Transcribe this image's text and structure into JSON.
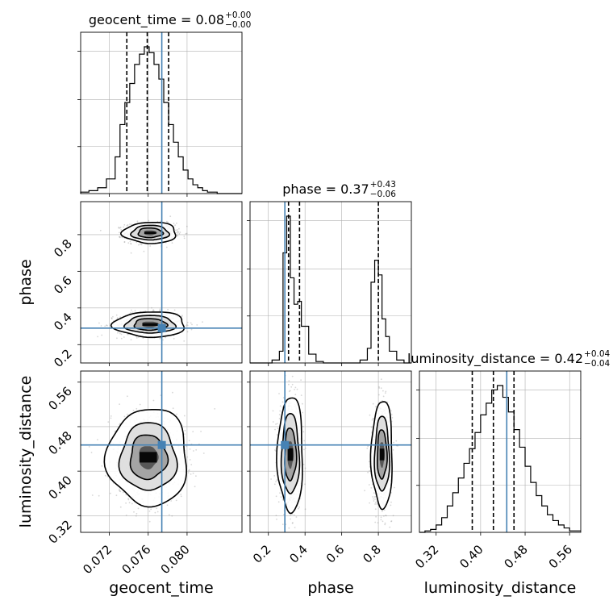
{
  "chart_data": {
    "type": "corner",
    "parameters": [
      {
        "name": "geocent_time",
        "axis_label": "geocent_time",
        "title": "geocent_time = 0.08",
        "title_sup": "+0.00",
        "title_sub": "−0.00",
        "range": [
          0.06905,
          0.08565
        ],
        "ticks": [
          0.072,
          0.076,
          0.08
        ],
        "tick_labels": [
          "0.072",
          "0.076",
          "0.080"
        ],
        "median": 0.0759,
        "quantile_lo": 0.0738,
        "quantile_hi": 0.0781,
        "truth": 0.0774
      },
      {
        "name": "phase",
        "axis_label": "phase",
        "title": "phase = 0.37",
        "title_sup": "+0.43",
        "title_sub": "−0.06",
        "range": [
          0.1,
          0.98
        ],
        "ticks": [
          0.2,
          0.4,
          0.6,
          0.8
        ],
        "tick_labels": [
          "0.2",
          "0.4",
          "0.6",
          "0.8"
        ],
        "median": 0.37,
        "quantile_lo": 0.31,
        "quantile_hi": 0.8,
        "truth": 0.29
      },
      {
        "name": "luminosity_distance",
        "axis_label": "luminosity_distance",
        "title": "luminosity_distance = 0.42",
        "title_sup": "+0.04",
        "title_sub": "−0.04",
        "range": [
          0.29,
          0.58
        ],
        "ticks": [
          0.32,
          0.4,
          0.48,
          0.56
        ],
        "tick_labels": [
          "0.32",
          "0.40",
          "0.48",
          "0.56"
        ],
        "median": 0.423,
        "quantile_lo": 0.385,
        "quantile_hi": 0.46,
        "truth": 0.447
      }
    ],
    "histograms": [
      {
        "param": "geocent_time",
        "bins": [
          0.06905,
          0.0699,
          0.0708,
          0.0717,
          0.0726,
          0.0731,
          0.0736,
          0.0741,
          0.0746,
          0.0751,
          0.0756,
          0.0761,
          0.0766,
          0.0771,
          0.0776,
          0.0781,
          0.0786,
          0.0791,
          0.0796,
          0.0801,
          0.0806,
          0.0811,
          0.0816,
          0.0821,
          0.0831,
          0.08565
        ],
        "counts": [
          1,
          2,
          4,
          10,
          25,
          47,
          62,
          75,
          88,
          95,
          100,
          96,
          88,
          78,
          62,
          47,
          35,
          25,
          16,
          10,
          6,
          4,
          2,
          1,
          0
        ]
      },
      {
        "param": "phase",
        "bins": [
          0.1,
          0.14,
          0.18,
          0.22,
          0.26,
          0.28,
          0.3,
          0.32,
          0.34,
          0.36,
          0.38,
          0.42,
          0.46,
          0.5,
          0.54,
          0.58,
          0.62,
          0.66,
          0.7,
          0.74,
          0.76,
          0.78,
          0.8,
          0.82,
          0.84,
          0.86,
          0.9,
          0.94,
          0.98
        ],
        "counts": [
          0,
          0,
          0,
          2,
          8,
          75,
          100,
          58,
          40,
          42,
          25,
          6,
          1,
          0,
          0,
          0,
          0,
          0,
          2,
          10,
          55,
          70,
          60,
          30,
          18,
          8,
          2,
          0
        ]
      },
      {
        "param": "luminosity_distance",
        "bins": [
          0.29,
          0.3,
          0.31,
          0.32,
          0.33,
          0.34,
          0.35,
          0.36,
          0.37,
          0.38,
          0.39,
          0.4,
          0.41,
          0.42,
          0.43,
          0.44,
          0.45,
          0.46,
          0.47,
          0.48,
          0.49,
          0.5,
          0.51,
          0.52,
          0.53,
          0.54,
          0.55,
          0.56,
          0.58
        ],
        "counts": [
          0,
          1,
          2,
          5,
          10,
          18,
          27,
          37,
          47,
          57,
          68,
          80,
          88,
          97,
          100,
          92,
          82,
          70,
          58,
          45,
          34,
          25,
          18,
          12,
          8,
          5,
          3,
          1
        ]
      }
    ],
    "pairs": [
      {
        "x": "geocent_time",
        "y": "phase",
        "modes": [
          {
            "cx": 0.0762,
            "cy": 0.81,
            "sx": 0.0012,
            "sy": 0.025
          },
          {
            "cx": 0.0762,
            "cy": 0.31,
            "sx": 0.0016,
            "sy": 0.03
          }
        ]
      },
      {
        "x": "geocent_time",
        "y": "luminosity_distance",
        "modes": [
          {
            "cx": 0.076,
            "cy": 0.425,
            "sx": 0.0018,
            "sy": 0.038
          }
        ]
      },
      {
        "x": "phase",
        "y": "luminosity_distance",
        "modes": [
          {
            "cx": 0.32,
            "cy": 0.43,
            "sx": 0.03,
            "sy": 0.045
          },
          {
            "cx": 0.82,
            "cy": 0.43,
            "sx": 0.025,
            "sy": 0.042
          }
        ]
      }
    ],
    "grid": true,
    "colors": {
      "truth": "#4682b4",
      "hist": "#000000",
      "quantile": "#000000",
      "grid": "#b0b0b0",
      "scatter": "#8c8c8c"
    }
  }
}
